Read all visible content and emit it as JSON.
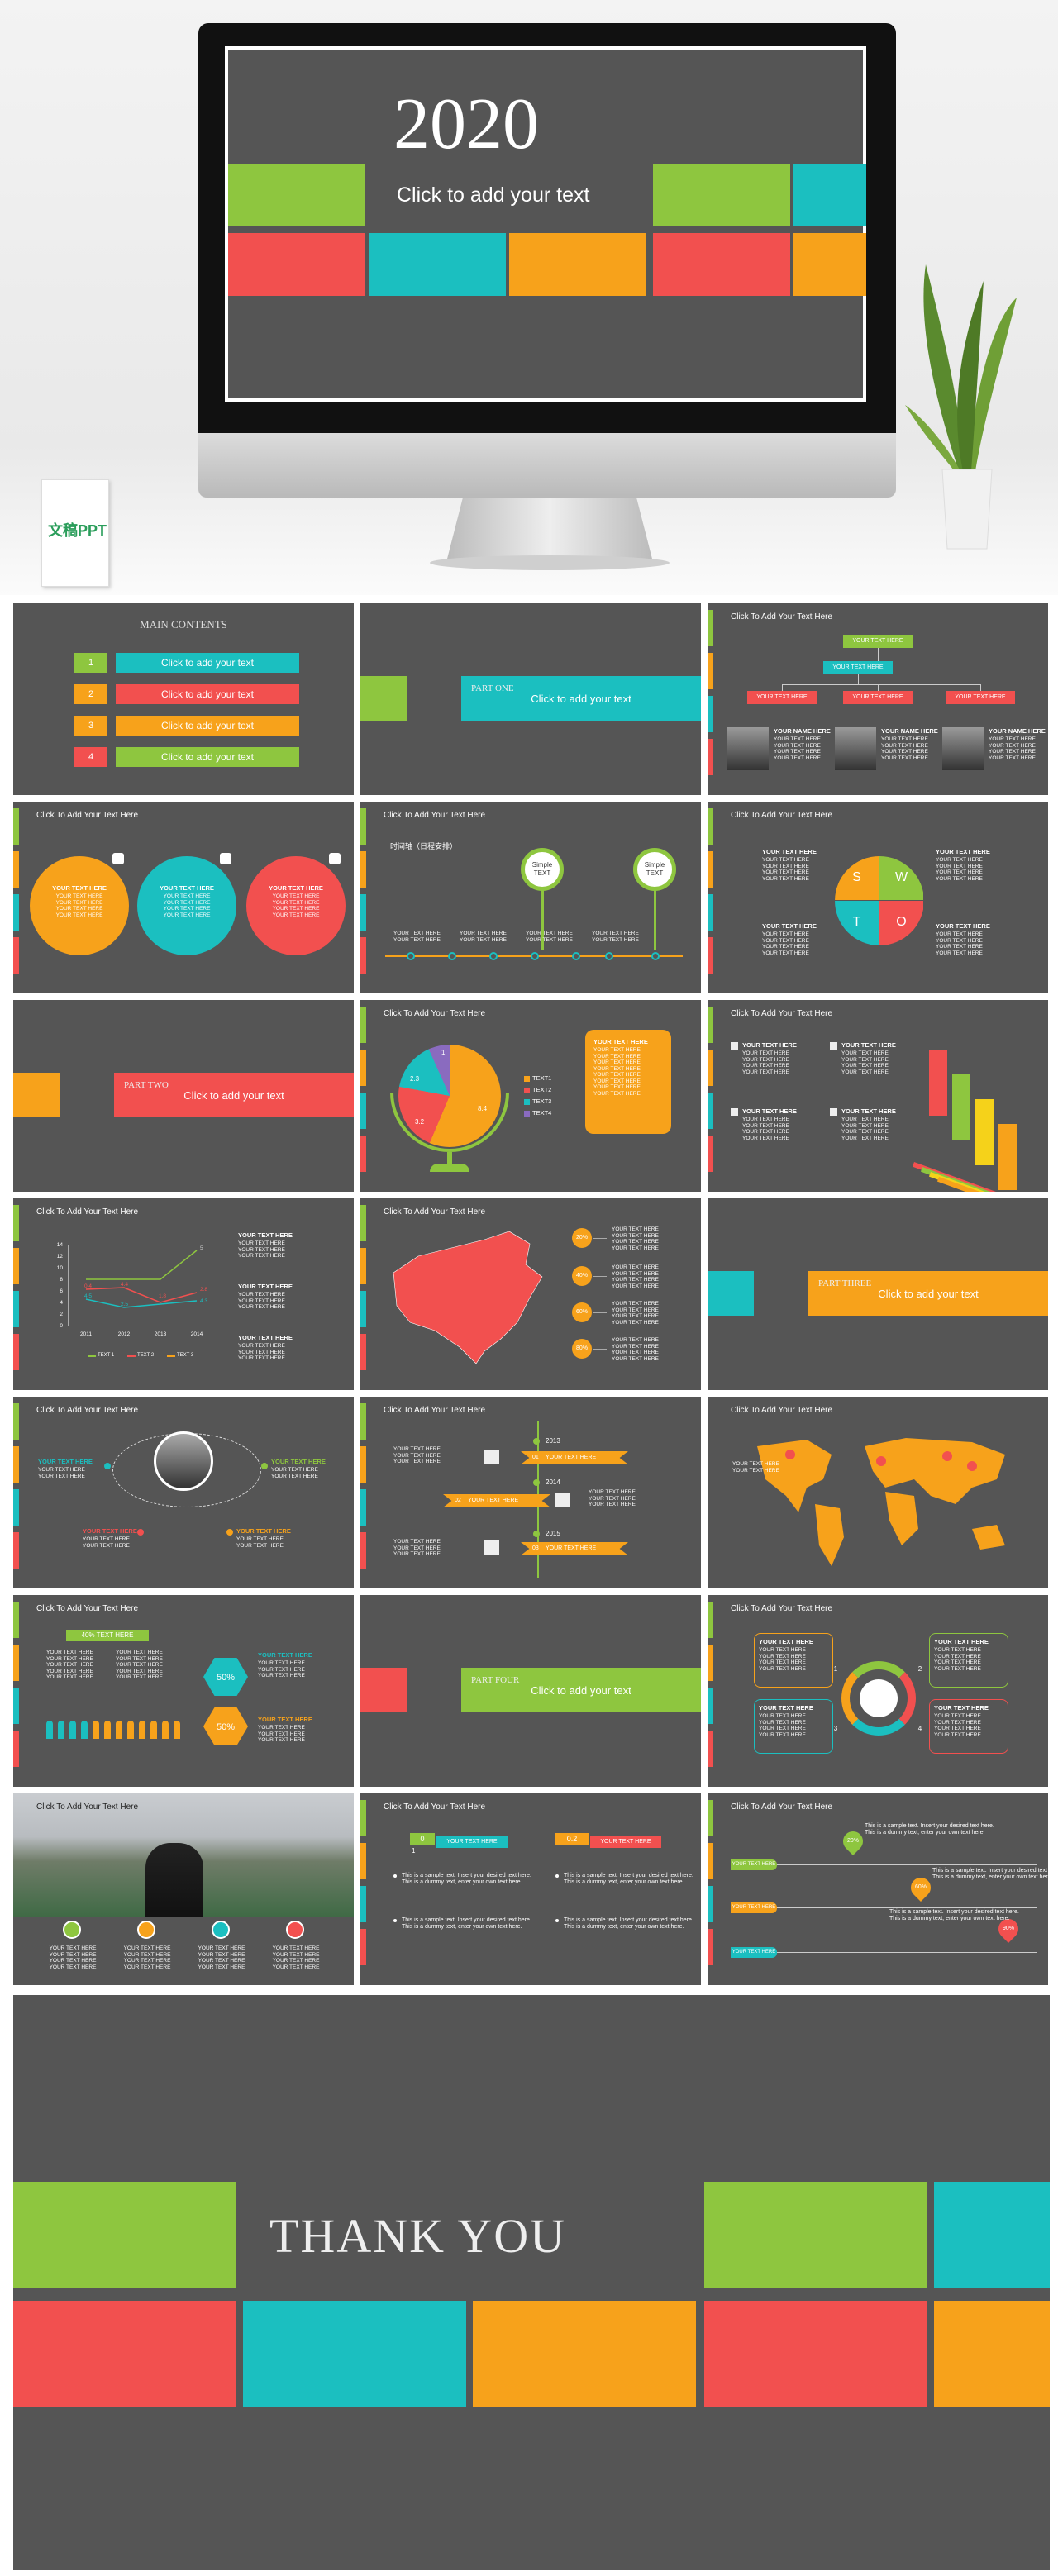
{
  "hero": {
    "year": "2020",
    "subtitle": "Click to add your text",
    "logo": "文稿PPT"
  },
  "slides": [
    {
      "kind": "contents",
      "labels": [
        "MAIN CONTENTS",
        "1",
        "2",
        "3",
        "4",
        "Click to add your text",
        "Click to add your text",
        "Click to add your text",
        "Click to add your text"
      ]
    },
    {
      "kind": "section",
      "block_color": "#8ec63f",
      "bar_color": "#1bbfc0",
      "labels": [
        "PART ONE",
        "Click to add your text"
      ]
    },
    {
      "kind": "org",
      "title": "Click To Add Your Text Here",
      "labels": [
        "YOUR TEXT HERE",
        "YOUR TEXT HERE",
        "YOUR TEXT HERE",
        "YOUR TEXT HERE",
        "YOUR TEXT HERE"
      ],
      "blocks": [
        {
          "h": "YOUR NAME HERE",
          "lines": [
            "YOUR TEXT HERE",
            "YOUR TEXT HERE",
            "YOUR TEXT HERE",
            "YOUR TEXT HERE"
          ]
        },
        {
          "h": "YOUR NAME HERE",
          "lines": [
            "YOUR TEXT HERE",
            "YOUR TEXT HERE",
            "YOUR TEXT HERE",
            "YOUR TEXT HERE"
          ]
        },
        {
          "h": "YOUR NAME HERE",
          "lines": [
            "YOUR TEXT HERE",
            "YOUR TEXT HERE",
            "YOUR TEXT HERE",
            "YOUR TEXT HERE"
          ]
        }
      ]
    },
    {
      "kind": "circles",
      "title": "Click To Add Your Text Here",
      "blocks": [
        {
          "h": "YOUR TEXT HERE",
          "lines": [
            "YOUR TEXT HERE",
            "YOUR TEXT HERE",
            "YOUR TEXT HERE",
            "YOUR TEXT HERE"
          ]
        },
        {
          "h": "YOUR TEXT HERE",
          "lines": [
            "YOUR TEXT HERE",
            "YOUR TEXT HERE",
            "YOUR TEXT HERE",
            "YOUR TEXT HERE"
          ]
        },
        {
          "h": "YOUR TEXT HERE",
          "lines": [
            "YOUR TEXT HERE",
            "YOUR TEXT HERE",
            "YOUR TEXT HERE",
            "YOUR TEXT HERE"
          ]
        }
      ]
    },
    {
      "kind": "timeline",
      "title": "Click To Add Your Text Here",
      "labels": [
        "时间轴（日程安排）",
        "Simple TEXT",
        "Simple TEXT"
      ],
      "blocks": [
        {
          "lines": [
            "YOUR TEXT HERE",
            "YOUR TEXT HERE"
          ]
        },
        {
          "lines": [
            "YOUR TEXT HERE",
            "YOUR TEXT HERE"
          ]
        },
        {
          "lines": [
            "YOUR TEXT HERE",
            "YOUR TEXT HERE"
          ]
        },
        {
          "lines": [
            "YOUR TEXT HERE",
            "YOUR TEXT HERE"
          ]
        }
      ]
    },
    {
      "kind": "swot",
      "title": "Click To Add Your Text Here",
      "labels": [
        "S",
        "W",
        "T",
        "O"
      ],
      "blocks": [
        {
          "h": "YOUR TEXT HERE",
          "lines": [
            "YOUR TEXT HERE",
            "YOUR TEXT HERE",
            "YOUR TEXT HERE",
            "YOUR TEXT HERE"
          ]
        },
        {
          "h": "YOUR TEXT HERE",
          "lines": [
            "YOUR TEXT HERE",
            "YOUR TEXT HERE",
            "YOUR TEXT HERE",
            "YOUR TEXT HERE"
          ]
        },
        {
          "h": "YOUR TEXT HERE",
          "lines": [
            "YOUR TEXT HERE",
            "YOUR TEXT HERE",
            "YOUR TEXT HERE",
            "YOUR TEXT HERE"
          ]
        },
        {
          "h": "YOUR TEXT HERE",
          "lines": [
            "YOUR TEXT HERE",
            "YOUR TEXT HERE",
            "YOUR TEXT HERE",
            "YOUR TEXT HERE"
          ]
        }
      ]
    },
    {
      "kind": "section",
      "block_color": "#f7a21b",
      "bar_color": "#f2504f",
      "labels": [
        "PART TWO",
        "Click to add your text"
      ]
    },
    {
      "kind": "pie",
      "title": "Click To Add Your Text Here",
      "labels": [
        "2.3",
        "3.2",
        "8.4",
        "1",
        "TEXT1",
        "TEXT2",
        "TEXT3",
        "TEXT4"
      ],
      "blocks": [
        {
          "h": "YOUR TEXT HERE",
          "lines": [
            "YOUR TEXT HERE",
            "YOUR TEXT HERE",
            "YOUR TEXT HERE",
            "YOUR TEXT HERE",
            "YOUR TEXT HERE",
            "YOUR TEXT HERE",
            "YOUR TEXT HERE",
            "YOUR TEXT HERE"
          ]
        }
      ]
    },
    {
      "kind": "icons",
      "title": "Click To Add Your Text Here",
      "blocks": [
        {
          "h": "YOUR TEXT HERE",
          "lines": [
            "YOUR TEXT HERE",
            "YOUR TEXT HERE",
            "YOUR TEXT HERE",
            "YOUR TEXT HERE"
          ]
        },
        {
          "h": "YOUR TEXT HERE",
          "lines": [
            "YOUR TEXT HERE",
            "YOUR TEXT HERE",
            "YOUR TEXT HERE",
            "YOUR TEXT HERE"
          ]
        },
        {
          "h": "YOUR TEXT HERE",
          "lines": [
            "YOUR TEXT HERE",
            "YOUR TEXT HERE",
            "YOUR TEXT HERE",
            "YOUR TEXT HERE"
          ]
        },
        {
          "h": "YOUR TEXT HERE",
          "lines": [
            "YOUR TEXT HERE",
            "YOUR TEXT HERE",
            "YOUR TEXT HERE",
            "YOUR TEXT HERE"
          ]
        }
      ]
    },
    {
      "kind": "linechart",
      "title": "Click To Add Your Text Here",
      "labels": [
        "14",
        "12",
        "10",
        "8",
        "6",
        "4",
        "2",
        "0",
        "2011",
        "2012",
        "2013",
        "2014",
        "5",
        "0.4",
        "4.4",
        "2.8",
        "4.5",
        "2.5",
        "1.8",
        "4.3",
        "TEXT 1",
        "TEXT 2",
        "TEXT 3"
      ],
      "blocks": [
        {
          "h": "YOUR TEXT HERE",
          "lines": [
            "YOUR TEXT HERE",
            "YOUR TEXT HERE",
            "YOUR TEXT HERE"
          ]
        },
        {
          "h": "YOUR TEXT HERE",
          "lines": [
            "YOUR TEXT HERE",
            "YOUR TEXT HERE",
            "YOUR TEXT HERE"
          ]
        },
        {
          "h": "YOUR TEXT HERE",
          "lines": [
            "YOUR TEXT HERE",
            "YOUR TEXT HERE",
            "YOUR TEXT HERE"
          ]
        }
      ]
    },
    {
      "kind": "map",
      "title": "Click To Add Your Text Here",
      "labels": [
        "20%",
        "40%",
        "60%",
        "80%"
      ],
      "blocks": [
        {
          "lines": [
            "YOUR TEXT HERE",
            "YOUR TEXT HERE",
            "YOUR TEXT HERE",
            "YOUR TEXT HERE"
          ]
        },
        {
          "lines": [
            "YOUR TEXT HERE",
            "YOUR TEXT HERE",
            "YOUR TEXT HERE",
            "YOUR TEXT HERE"
          ]
        },
        {
          "lines": [
            "YOUR TEXT HERE",
            "YOUR TEXT HERE",
            "YOUR TEXT HERE",
            "YOUR TEXT HERE"
          ]
        },
        {
          "lines": [
            "YOUR TEXT HERE",
            "YOUR TEXT HERE",
            "YOUR TEXT HERE",
            "YOUR TEXT HERE"
          ]
        }
      ]
    },
    {
      "kind": "section",
      "block_color": "#1bbfc0",
      "bar_color": "#f7a21b",
      "labels": [
        "PART THREE",
        "Click to add your text"
      ]
    },
    {
      "kind": "profile",
      "title": "Click To Add Your Text Here",
      "blocks": [
        {
          "h": "YOUR TEXT HERE",
          "lines": [
            "YOUR TEXT HERE",
            "YOUR TEXT HERE"
          ]
        },
        {
          "h": "YOUR TEXT HERE",
          "lines": [
            "YOUR TEXT HERE",
            "YOUR TEXT HERE"
          ]
        },
        {
          "h": "YOUR TEXT HERE",
          "lines": [
            "YOUR TEXT HERE",
            "YOUR TEXT HERE"
          ]
        },
        {
          "h": "YOUR TEXT HERE",
          "lines": [
            "YOUR TEXT HERE",
            "YOUR TEXT HERE"
          ]
        }
      ]
    },
    {
      "kind": "years",
      "title": "Click To Add Your Text Here",
      "labels": [
        "2013",
        "2014",
        "2015",
        "01",
        "02",
        "03",
        "YOUR TEXT HERE",
        "YOUR TEXT HERE",
        "YOUR TEXT HERE"
      ],
      "blocks": [
        {
          "lines": [
            "YOUR TEXT HERE",
            "YOUR TEXT HERE",
            "YOUR TEXT HERE"
          ]
        },
        {
          "lines": [
            "YOUR TEXT HERE",
            "YOUR TEXT HERE",
            "YOUR TEXT HERE"
          ]
        },
        {
          "lines": [
            "YOUR TEXT HERE",
            "YOUR TEXT HERE",
            "YOUR TEXT HERE"
          ]
        }
      ]
    },
    {
      "kind": "world",
      "title": "Click To Add Your Text Here",
      "blocks": [
        {
          "lines": [
            "YOUR TEXT HERE",
            "YOUR TEXT HERE"
          ]
        }
      ]
    },
    {
      "kind": "percent",
      "title": "Click To Add Your Text Here",
      "labels": [
        "40% TEXT HERE",
        "50%",
        "50%"
      ],
      "blocks": [
        {
          "lines": [
            "YOUR TEXT HERE",
            "YOUR TEXT HERE",
            "YOUR TEXT HERE",
            "YOUR TEXT HERE",
            "YOUR TEXT HERE"
          ]
        },
        {
          "lines": [
            "YOUR TEXT HERE",
            "YOUR TEXT HERE",
            "YOUR TEXT HERE",
            "YOUR TEXT HERE",
            "YOUR TEXT HERE"
          ]
        },
        {
          "h": "YOUR TEXT HERE",
          "lines": [
            "YOUR TEXT HERE",
            "YOUR TEXT HERE",
            "YOUR TEXT HERE"
          ]
        },
        {
          "h": "YOUR TEXT HERE",
          "lines": [
            "YOUR TEXT HERE",
            "YOUR TEXT HERE",
            "YOUR TEXT HERE"
          ]
        }
      ]
    },
    {
      "kind": "section",
      "block_color": "#f2504f",
      "bar_color": "#8ec63f",
      "labels": [
        "PART FOUR",
        "Click to add your text"
      ]
    },
    {
      "kind": "cycle",
      "title": "Click To Add Your Text Here",
      "labels": [
        "1",
        "2",
        "3",
        "4"
      ],
      "blocks": [
        {
          "h": "YOUR TEXT HERE",
          "lines": [
            "YOUR TEXT HERE",
            "YOUR TEXT HERE",
            "YOUR TEXT HERE",
            "YOUR TEXT HERE"
          ]
        },
        {
          "h": "YOUR TEXT HERE",
          "lines": [
            "YOUR TEXT HERE",
            "YOUR TEXT HERE",
            "YOUR TEXT HERE",
            "YOUR TEXT HERE"
          ]
        },
        {
          "h": "YOUR TEXT HERE",
          "lines": [
            "YOUR TEXT HERE",
            "YOUR TEXT HERE",
            "YOUR TEXT HERE",
            "YOUR TEXT HERE"
          ]
        },
        {
          "h": "YOUR TEXT HERE",
          "lines": [
            "YOUR TEXT HERE",
            "YOUR TEXT HERE",
            "YOUR TEXT HERE",
            "YOUR TEXT HERE"
          ]
        }
      ]
    },
    {
      "kind": "photo",
      "title": "Click To Add Your Text Here",
      "blocks": [
        {
          "lines": [
            "YOUR TEXT HERE",
            "YOUR TEXT HERE",
            "YOUR TEXT HERE",
            "YOUR TEXT HERE"
          ]
        },
        {
          "lines": [
            "YOUR TEXT HERE",
            "YOUR TEXT HERE",
            "YOUR TEXT HERE",
            "YOUR TEXT HERE"
          ]
        },
        {
          "lines": [
            "YOUR TEXT HERE",
            "YOUR TEXT HERE",
            "YOUR TEXT HERE",
            "YOUR TEXT HERE"
          ]
        },
        {
          "lines": [
            "YOUR TEXT HERE",
            "YOUR TEXT HERE",
            "YOUR TEXT HERE",
            "YOUR TEXT HERE"
          ]
        }
      ]
    },
    {
      "kind": "progress",
      "title": "Click To Add Your Text Here",
      "labels": [
        "0",
        "1",
        "YOUR TEXT HERE",
        "0.2",
        "YOUR TEXT HERE"
      ],
      "blocks": [
        {
          "lines": [
            "This is a sample text. Insert your desired text here. This is a dummy text, enter your own text here."
          ]
        },
        {
          "lines": [
            "This is a sample text. Insert your desired text here. This is a dummy text, enter your own text here."
          ]
        },
        {
          "lines": [
            "This is a sample text. Insert your desired text here. This is a dummy text, enter your own text here."
          ]
        },
        {
          "lines": [
            "This is a sample text. Insert your desired text here. This is a dummy text, enter your own text here."
          ]
        }
      ]
    },
    {
      "kind": "sliders",
      "title": "Click To Add Your Text Here",
      "labels": [
        "20%",
        "60%",
        "90%",
        "YOUR TEXT HERE",
        "YOUR TEXT HERE",
        "YOUR TEXT HERE"
      ],
      "blocks": [
        {
          "lines": [
            "This is a sample text. Insert your desired text here. This is a dummy text, enter your own text here."
          ]
        },
        {
          "lines": [
            "This is a sample text. Insert your desired text here. This is a dummy text, enter your own text here."
          ]
        },
        {
          "lines": [
            "This is a sample text. Insert your desired text here. This is a dummy text, enter your own text here."
          ]
        }
      ]
    }
  ],
  "thanks": {
    "text": "THANK YOU"
  }
}
